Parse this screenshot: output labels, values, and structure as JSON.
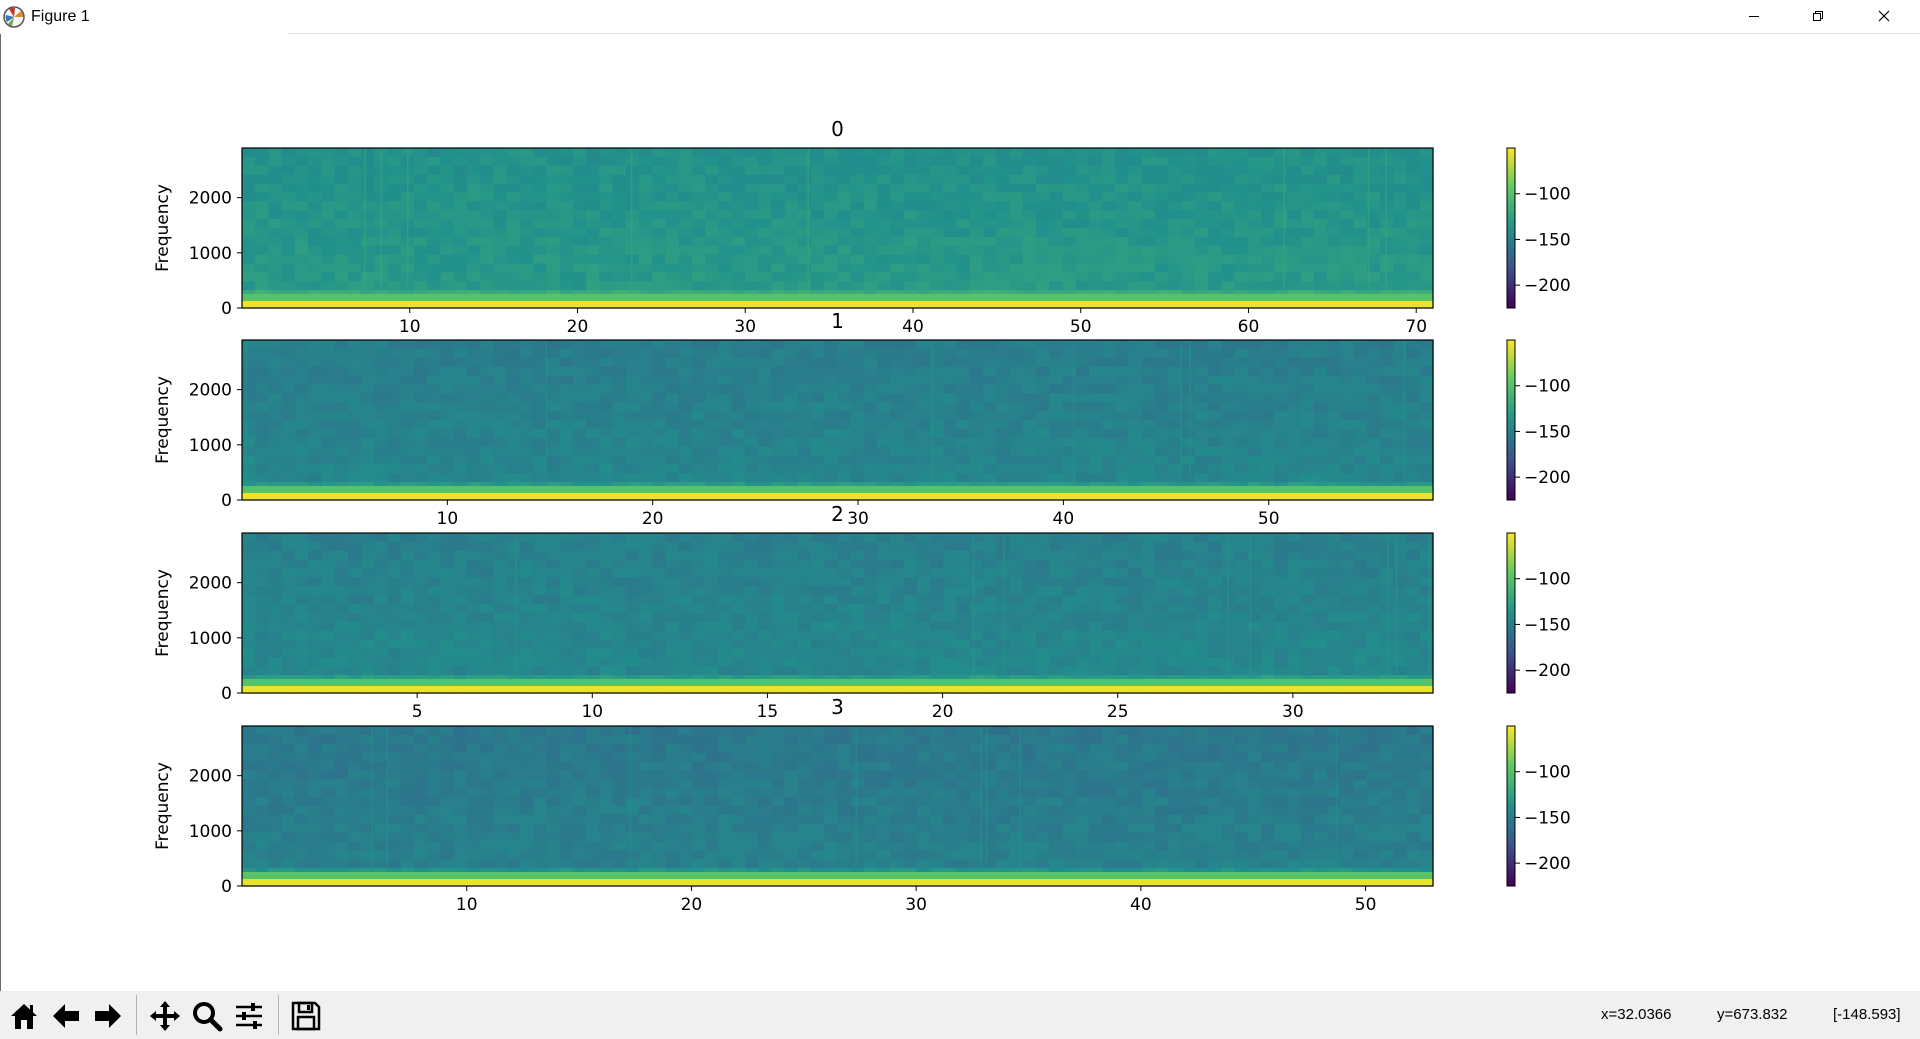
{
  "window": {
    "title": "Figure 1",
    "icons": [
      "matplotlib-logo-icon",
      "minimize-icon",
      "restore-icon",
      "close-icon"
    ]
  },
  "toolbar": {
    "tools": [
      "home-icon",
      "back-arrow-icon",
      "forward-arrow-icon",
      "pan-icon",
      "zoom-icon",
      "configure-subplots-icon",
      "save-icon"
    ]
  },
  "status": {
    "x": "x=32.0366",
    "y": "y=673.832",
    "value": "[-148.593]"
  },
  "colors": {
    "colormap": [
      "#440154",
      "#3b528b",
      "#21918c",
      "#5ec962",
      "#fde725"
    ],
    "background_noise": "#21838c",
    "baseline": "#fde725"
  },
  "chart_data": [
    {
      "type": "heatmap",
      "title": "0",
      "ylabel": "Frequency",
      "xlabel": "",
      "xlim": [
        0,
        71
      ],
      "ylim": [
        0,
        2900
      ],
      "xticks": [
        10,
        20,
        30,
        40,
        50,
        60,
        70
      ],
      "yticks": [
        0,
        1000,
        2000
      ],
      "colorbar": {
        "ticks": [
          -100,
          -150,
          -200
        ],
        "range": [
          -225,
          -50
        ]
      },
      "noise_level": 0.5
    },
    {
      "type": "heatmap",
      "title": "1",
      "ylabel": "Frequency",
      "xlabel": "",
      "xlim": [
        0,
        58
      ],
      "ylim": [
        0,
        2900
      ],
      "xticks": [
        10,
        20,
        30,
        40,
        50
      ],
      "yticks": [
        0,
        1000,
        2000
      ],
      "colorbar": {
        "ticks": [
          -100,
          -150,
          -200
        ],
        "range": [
          -225,
          -50
        ]
      },
      "noise_level": 0.42
    },
    {
      "type": "heatmap",
      "title": "2",
      "ylabel": "Frequency",
      "xlabel": "",
      "xlim": [
        0,
        34
      ],
      "ylim": [
        0,
        2900
      ],
      "xticks": [
        5,
        10,
        15,
        20,
        25,
        30
      ],
      "yticks": [
        0,
        1000,
        2000
      ],
      "colorbar": {
        "ticks": [
          -100,
          -150,
          -200
        ],
        "range": [
          -225,
          -50
        ]
      },
      "noise_level": 0.43
    },
    {
      "type": "heatmap",
      "title": "3",
      "ylabel": "Frequency",
      "xlabel": "",
      "xlim": [
        0,
        53
      ],
      "ylim": [
        0,
        2900
      ],
      "xticks": [
        10,
        20,
        30,
        40,
        50
      ],
      "yticks": [
        0,
        1000,
        2000
      ],
      "colorbar": {
        "ticks": [
          -100,
          -150,
          -200
        ],
        "range": [
          -225,
          -50
        ]
      },
      "noise_level": 0.4
    }
  ]
}
